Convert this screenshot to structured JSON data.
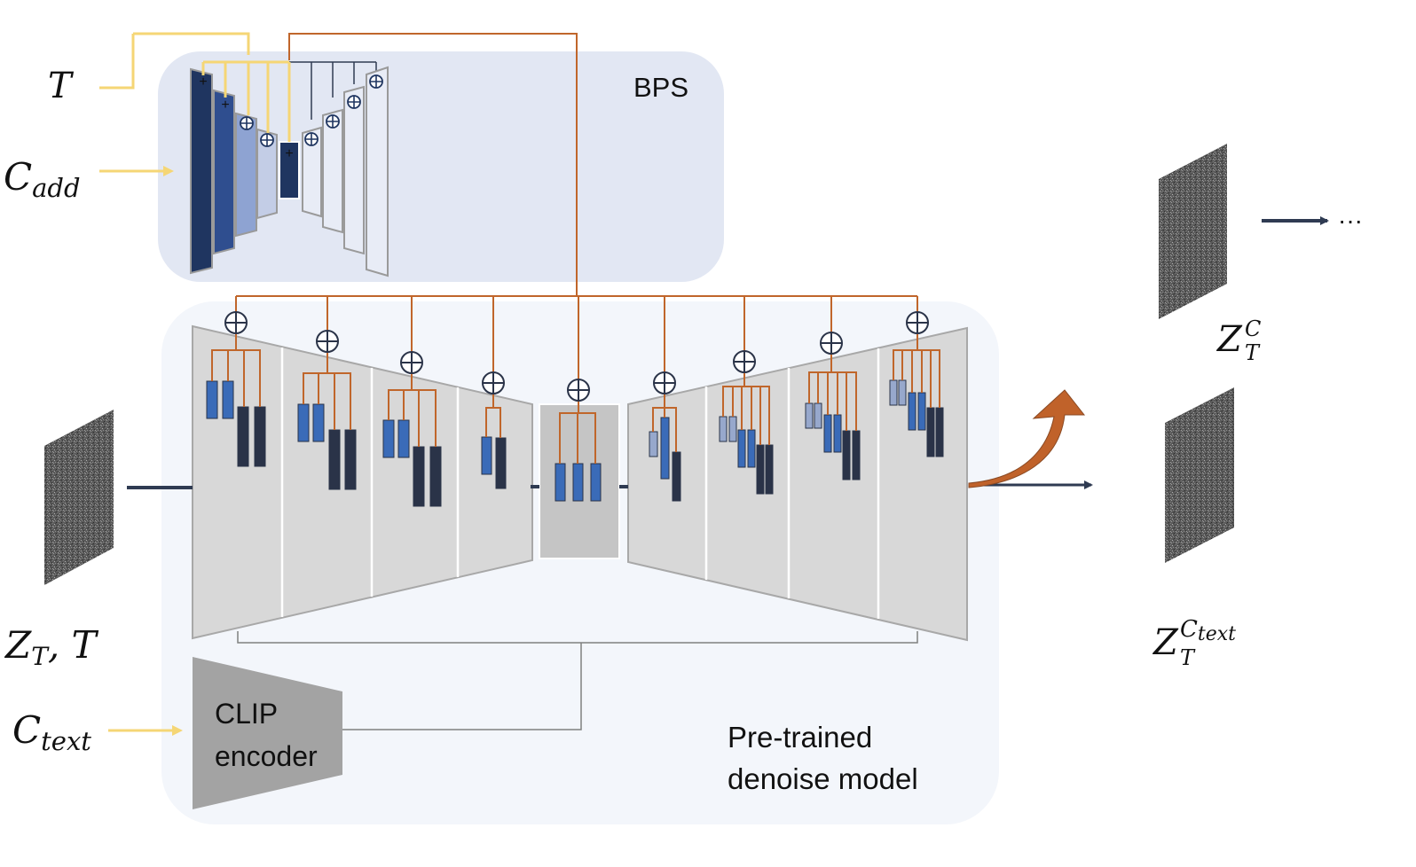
{
  "labels": {
    "bps": "BPS",
    "clip_line1": "CLIP",
    "clip_line2": "encoder",
    "model_line1": "Pre-trained",
    "model_line2": "denoise model",
    "ellipsis": "···"
  },
  "math": {
    "t": {
      "base": "T"
    },
    "c_add": {
      "base": "C",
      "sub": "add"
    },
    "z_t_t": {
      "base": "Z",
      "sub": "T",
      "rest": ", T"
    },
    "c_text": {
      "base": "C",
      "sub": "text"
    },
    "z_c": {
      "base": "Z",
      "sub": "T",
      "sup": "C"
    },
    "z_ctext": {
      "base": "Z",
      "sub": "T",
      "sup": "C",
      "supsub": "text"
    }
  },
  "colors": {
    "bps_panel": "#e2e7f3",
    "model_panel": "#f3f6fb",
    "block_face": "#d8d8d8",
    "block_edge": "#a8a8a8",
    "middle_face": "#c5c5c5",
    "orange_wire": "#c0662b",
    "yellow_arrow": "#f5d675",
    "dark_arrow": "#2f3b52",
    "feature_blue": "#3a6bb8",
    "feature_dark": "#2a3348",
    "feature_light": "#97a8cc",
    "clip_gray": "#a3a3a3",
    "curved_arrow": "#c0622a"
  }
}
